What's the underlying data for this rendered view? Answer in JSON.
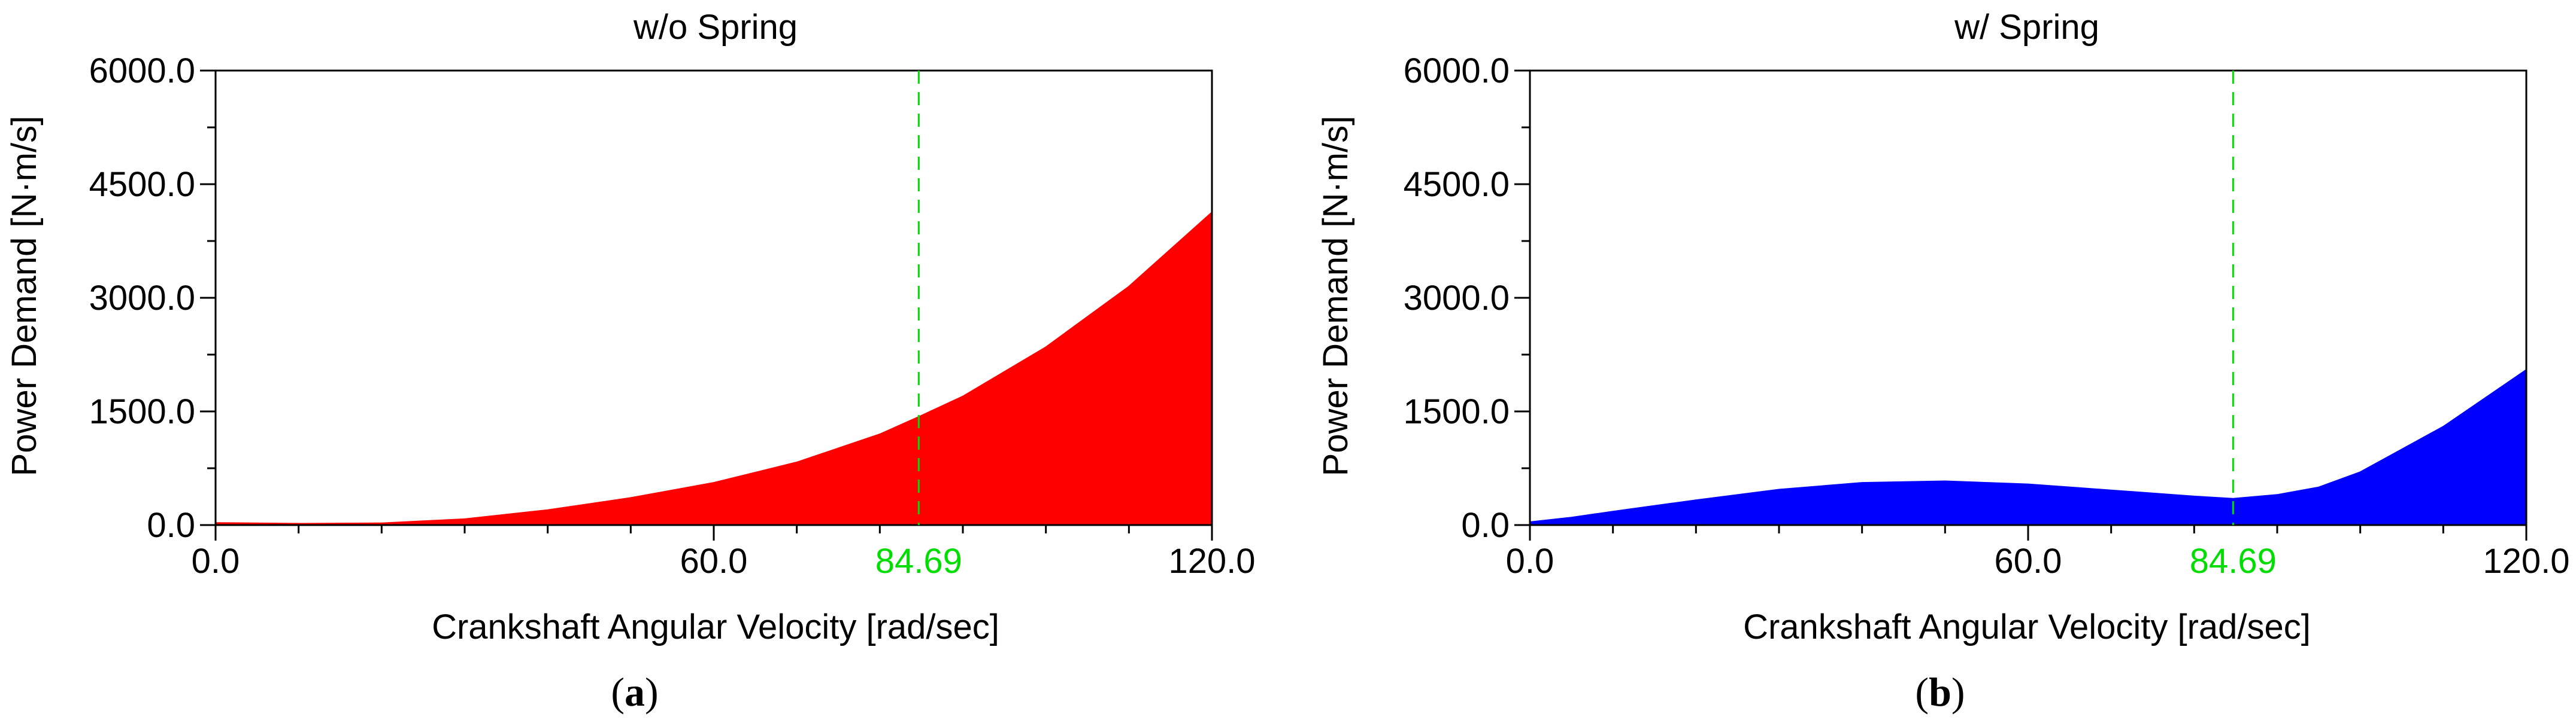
{
  "chart_data": [
    {
      "type": "area",
      "panel": "a",
      "title": "w/o Spring",
      "xlabel": "Crankshaft Angular Velocity [rad/sec]",
      "ylabel": "Power Demand [N·m/s]",
      "xlim": [
        0,
        120
      ],
      "ylim": [
        0,
        6000
      ],
      "xticks": [
        0,
        60,
        120
      ],
      "xtick_labels": [
        "0.0",
        "60.0",
        "120.0"
      ],
      "yticks": [
        0,
        1500,
        3000,
        4500,
        6000
      ],
      "ytick_labels": [
        "0.0",
        "1500.0",
        "3000.0",
        "4500.0",
        "6000.0"
      ],
      "marker": {
        "x": 84.69,
        "label": "84.69",
        "color": "#00dd00"
      },
      "fill_color": "#ff0000",
      "x": [
        0,
        10,
        20,
        30,
        40,
        50,
        60,
        70,
        80,
        84.69,
        90,
        100,
        110,
        120
      ],
      "values": [
        30,
        20,
        25,
        80,
        200,
        360,
        560,
        830,
        1200,
        1430,
        1700,
        2350,
        3150,
        4130
      ]
    },
    {
      "type": "area",
      "panel": "b",
      "title": "w/ Spring",
      "xlabel": "Crankshaft Angular Velocity [rad/sec]",
      "ylabel": "Power Demand [N·m/s]",
      "xlim": [
        0,
        120
      ],
      "ylim": [
        0,
        6000
      ],
      "xticks": [
        0,
        60,
        120
      ],
      "xtick_labels": [
        "0.0",
        "60.0",
        "120.0"
      ],
      "yticks": [
        0,
        1500,
        3000,
        4500,
        6000
      ],
      "ytick_labels": [
        "0.0",
        "1500.0",
        "3000.0",
        "4500.0",
        "6000.0"
      ],
      "marker": {
        "x": 84.69,
        "label": "84.69",
        "color": "#00dd00"
      },
      "fill_color": "#0000ff",
      "x": [
        0,
        5,
        10,
        20,
        30,
        40,
        50,
        60,
        70,
        80,
        84.69,
        90,
        95,
        100,
        110,
        120
      ],
      "values": [
        40,
        100,
        180,
        330,
        470,
        560,
        580,
        540,
        460,
        380,
        350,
        400,
        500,
        700,
        1300,
        2050
      ]
    }
  ],
  "panel_labels": [
    {
      "open": "(",
      "letter": "a",
      "close": ")"
    },
    {
      "open": "(",
      "letter": "b",
      "close": ")"
    }
  ]
}
